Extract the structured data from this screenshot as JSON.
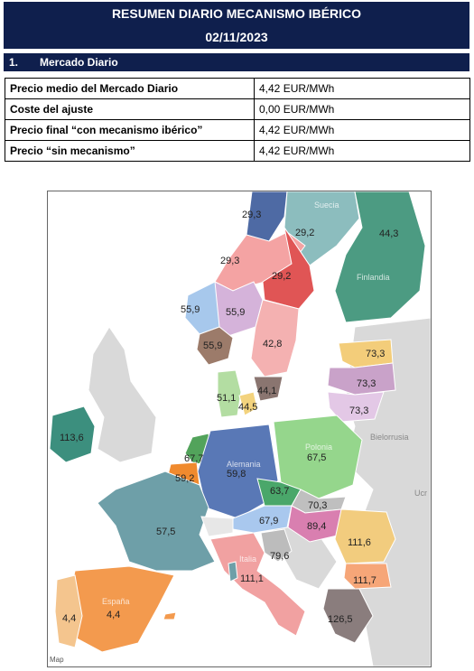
{
  "header": {
    "title": "RESUMEN DIARIO MECANISMO IBÉRICO",
    "date": "02/11/2023"
  },
  "section": {
    "number": "1.",
    "title": "Mercado Diario"
  },
  "summary": {
    "rows": [
      {
        "label": "Precio medio del Mercado Diario",
        "value": "4,42 EUR/MWh"
      },
      {
        "label": "Coste del ajuste",
        "value": "0,00 EUR/MWh"
      },
      {
        "label": "Precio final “con mecanismo ibérico”",
        "value": "4,42 EUR/MWh"
      },
      {
        "label": "Precio “sin mecanismo”",
        "value": "4,42 EUR/MWh"
      }
    ]
  },
  "map": {
    "attribution": "Map",
    "country_names": {
      "suecia": "Suecia",
      "finlandia": "Finlandia",
      "bielorrusia": "Bielorrusia",
      "alemania": "Alemania",
      "polonia": "Polonia",
      "espana": "España",
      "italia": "Italia",
      "ucrania": "Ucr"
    },
    "prices": {
      "no4": "29,3",
      "se1": "29,2",
      "fi": "44,3",
      "no3": "29,3",
      "se2": "29,2",
      "no5": "55,9",
      "no1": "55,9",
      "no2": "55,9",
      "se3": "42,8",
      "ee": "73,3",
      "lv": "73,3",
      "lt": "73,3",
      "dk1": "51,1",
      "dk2": "44,5",
      "se4": "44,1",
      "ie": "113,6",
      "nl": "67,7",
      "be": "59,2",
      "de": "59,8",
      "pl": "67,5",
      "cz": "63,7",
      "sk": "70,3",
      "at": "67,9",
      "hu": "89,4",
      "ro": "111,6",
      "fr": "57,5",
      "si": "79,6",
      "it": "111,1",
      "bg": "111,7",
      "gr": "126,5",
      "pt": "4,4",
      "es": "4,4"
    },
    "colors": {
      "sea": "#ffffff",
      "land_grey": "#d9d9d9",
      "no4": "#4e6aa4",
      "se1": "#8cbdbe",
      "fi": "#4c9b82",
      "no3": "#f4a3a3",
      "se2": "#e05555",
      "no5": "#a7c8ec",
      "no1": "#d5b3da",
      "no2": "#9c7b6a",
      "se3": "#f4b1b1",
      "se4": "#8a7570",
      "baltic_ee": "#f3cd7a",
      "baltic_lv": "#c9a2c9",
      "baltic_lt": "#e3c8e6",
      "dk1": "#b3dda2",
      "dk2": "#f3d37e",
      "ie": "#3c8f7e",
      "nl": "#52a35b",
      "be": "#f08a2e",
      "de": "#5978b6",
      "pl": "#95d68c",
      "cz": "#4aa76a",
      "sk": "#bfbfbf",
      "at": "#a9c8ee",
      "hu": "#d97fb0",
      "ro": "#f2cc7e",
      "fr": "#6e9fa8",
      "ch": "#e7e7e7",
      "it": "#f1a1a1",
      "si": "#bcbcbc",
      "bg": "#f6a678",
      "gr": "#8a7d7d",
      "es": "#f39a4e",
      "pt": "#f4c58e"
    }
  }
}
